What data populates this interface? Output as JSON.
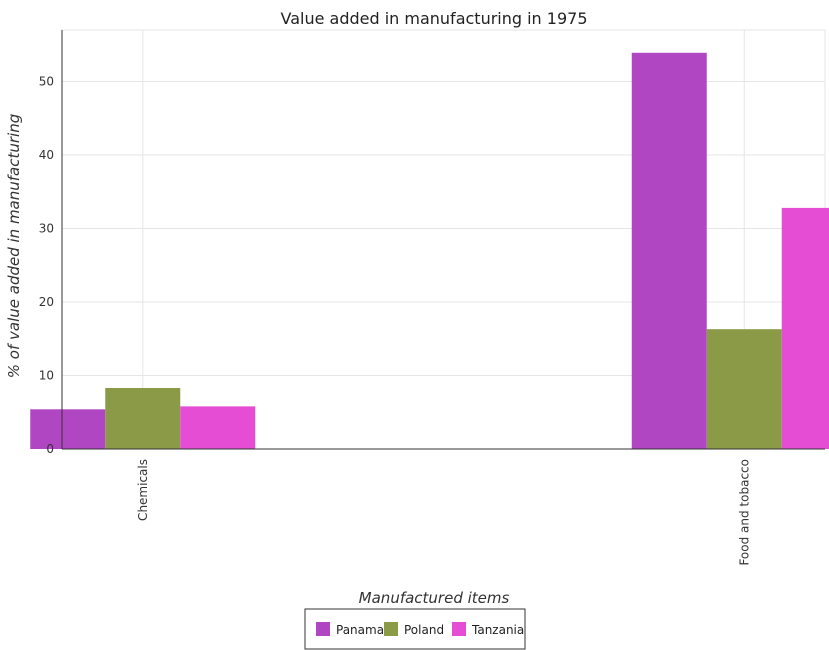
{
  "chart_data": {
    "type": "bar",
    "title": "Value added in manufacturing in 1975",
    "xlabel": "Manufactured items",
    "ylabel": "% of value added in manufacturing",
    "categories": [
      "Chemicals",
      "Food and tobacco"
    ],
    "series": [
      {
        "name": "Panama",
        "color": "#b146c2",
        "values": [
          5.4,
          53.9
        ]
      },
      {
        "name": "Poland",
        "color": "#8b9a46",
        "values": [
          8.3,
          16.3
        ]
      },
      {
        "name": "Tanzania",
        "color": "#e64dd5",
        "values": [
          5.8,
          32.8
        ]
      }
    ],
    "ylim": [
      0,
      57
    ],
    "yticks": [
      0,
      10,
      20,
      30,
      40,
      50
    ],
    "grid": true,
    "legend_position": "bottom-center"
  }
}
